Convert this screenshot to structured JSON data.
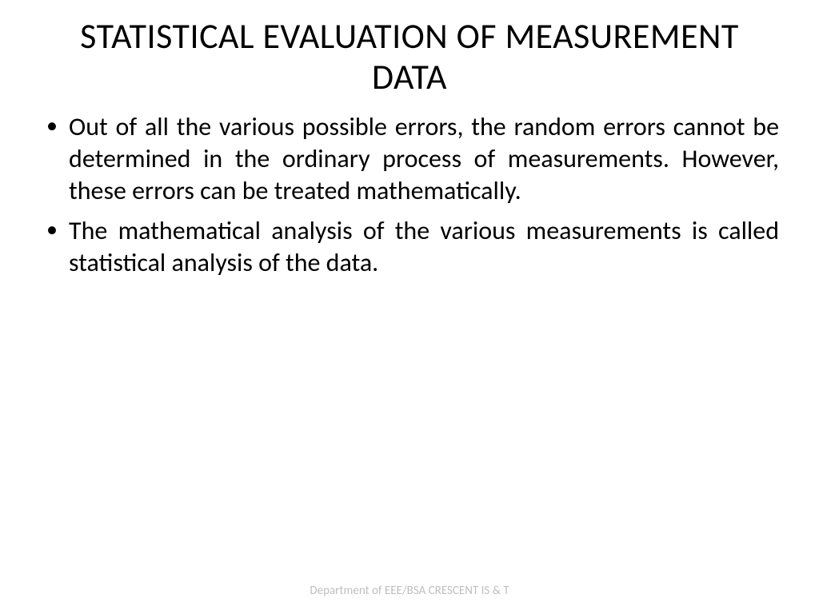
{
  "slide": {
    "title": "STATISTICAL EVALUATION OF MEASUREMENT DATA",
    "bullets": [
      "Out of all the various possible errors, the random errors cannot be determined in the ordinary process of measurements. However, these errors can be treated mathematically.",
      "The mathematical analysis of the various measurements is called statistical analysis of the data."
    ],
    "footer": "Department of EEE/BSA CRESCENT IS & T"
  },
  "styling": {
    "background_color": "#ffffff",
    "title_color": "#000000",
    "title_fontsize": 44,
    "body_color": "#000000",
    "body_fontsize": 32,
    "footer_color": "#bfbfbf",
    "footer_fontsize": 15,
    "text_align": "justify"
  }
}
